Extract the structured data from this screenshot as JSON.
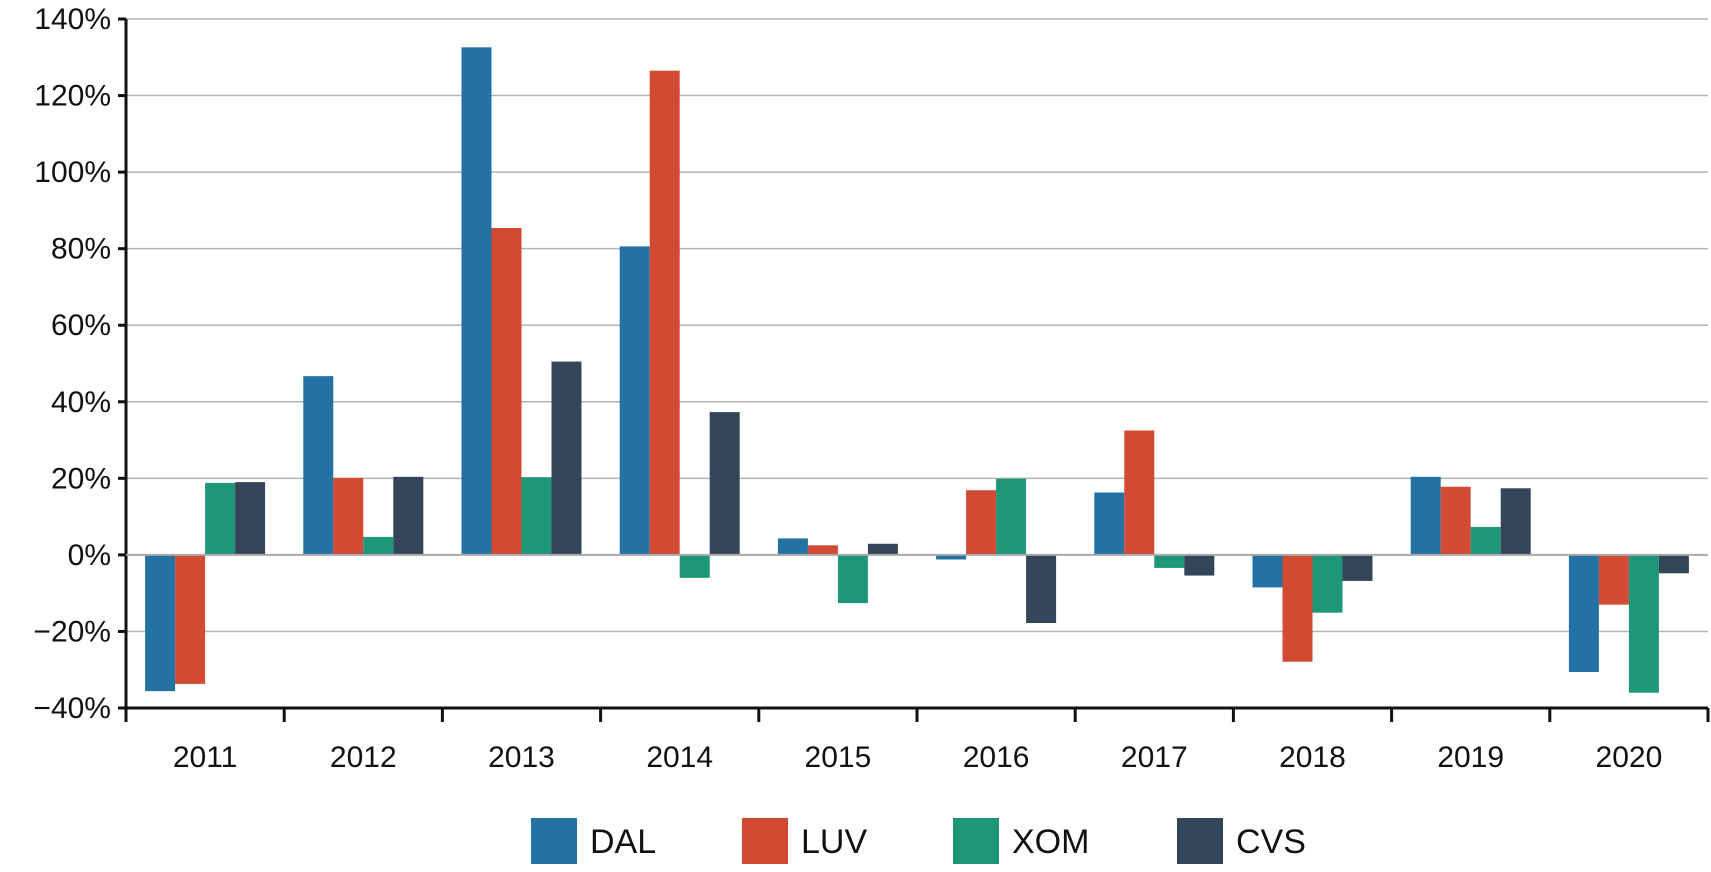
{
  "chart_data": {
    "type": "bar",
    "title": "",
    "xlabel": "",
    "ylabel": "",
    "categories": [
      "2011",
      "2012",
      "2013",
      "2014",
      "2015",
      "2016",
      "2017",
      "2018",
      "2019",
      "2020"
    ],
    "ylim": [
      -40,
      140
    ],
    "yticks": [
      -40,
      -20,
      0,
      20,
      40,
      60,
      80,
      100,
      120,
      140
    ],
    "ytick_labels": [
      "−40%",
      "−20%",
      "0%",
      "20%",
      "40%",
      "60%",
      "80%",
      "100%",
      "120%",
      "140%"
    ],
    "grid": true,
    "legend_position": "bottom",
    "series": [
      {
        "name": "DAL",
        "color": "#2471a3",
        "values": [
          -35.6,
          46.7,
          132.6,
          80.6,
          4.3,
          -1.2,
          16.3,
          -8.5,
          20.4,
          -30.6
        ]
      },
      {
        "name": "LUV",
        "color": "#d24a33",
        "values": [
          -33.7,
          20.1,
          85.4,
          126.5,
          2.5,
          16.9,
          32.5,
          -27.9,
          17.8,
          -13.0
        ]
      },
      {
        "name": "XOM",
        "color": "#1e9678",
        "values": [
          18.8,
          4.7,
          20.3,
          -6.0,
          -12.6,
          19.9,
          -3.4,
          -15.1,
          7.3,
          -36.0
        ]
      },
      {
        "name": "CVS",
        "color": "#344459",
        "values": [
          19.0,
          20.4,
          50.5,
          37.3,
          2.9,
          -17.8,
          -5.4,
          -6.8,
          17.4,
          -4.8
        ]
      }
    ]
  }
}
